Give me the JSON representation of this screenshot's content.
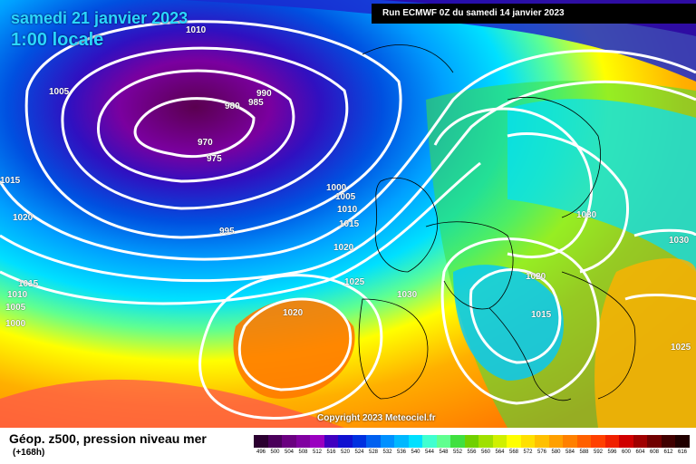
{
  "header": {
    "date": "samedi 21 janvier 2023",
    "time": "1:00 locale",
    "run": "Run ECMWF 0Z du samedi 14 janvier 2023"
  },
  "footer": {
    "title": "Géop. z500, pression niveau mer",
    "subtitle": "(+168h)",
    "copyright": "Copyright 2023 Meteociel.fr"
  },
  "scale": {
    "values": [
      "496",
      "500",
      "504",
      "508",
      "512",
      "516",
      "520",
      "524",
      "528",
      "532",
      "536",
      "540",
      "544",
      "548",
      "552",
      "556",
      "560",
      "564",
      "568",
      "572",
      "576",
      "580",
      "584",
      "588",
      "592",
      "596",
      "600",
      "604",
      "608",
      "612",
      "616"
    ],
    "colors": [
      "#2b0030",
      "#4a005a",
      "#6a0080",
      "#8000a0",
      "#9a00c0",
      "#4000c0",
      "#1010d0",
      "#0030e0",
      "#0060f0",
      "#0090ff",
      "#00b8ff",
      "#00e0ff",
      "#40ffd0",
      "#60ff90",
      "#40e040",
      "#70d000",
      "#a0e000",
      "#d0f000",
      "#ffff00",
      "#ffe000",
      "#ffc000",
      "#ffa000",
      "#ff8000",
      "#ff6000",
      "#ff4000",
      "#f02000",
      "#d00000",
      "#a00000",
      "#700000",
      "#400000",
      "#200000"
    ]
  },
  "isobars": [
    {
      "label": "1010",
      "color": "#fff"
    },
    {
      "label": "1005",
      "color": "#fff"
    },
    {
      "label": "990",
      "color": "#fff"
    },
    {
      "label": "985",
      "color": "#fff"
    },
    {
      "label": "980",
      "color": "#fff"
    },
    {
      "label": "970",
      "color": "#fff"
    },
    {
      "label": "975",
      "color": "#fff"
    },
    {
      "label": "1015",
      "color": "#fff"
    },
    {
      "label": "1020",
      "color": "#fff"
    },
    {
      "label": "995",
      "color": "#fff"
    },
    {
      "label": "1000",
      "color": "#fff"
    },
    {
      "label": "1005",
      "color": "#fff"
    },
    {
      "label": "1010",
      "color": "#fff"
    },
    {
      "label": "1015",
      "color": "#fff"
    },
    {
      "label": "1020",
      "color": "#fff"
    },
    {
      "label": "1025",
      "color": "#fff"
    },
    {
      "label": "1030",
      "color": "#fff"
    },
    {
      "label": "1020",
      "color": "#fff"
    },
    {
      "label": "1030",
      "color": "#fff"
    },
    {
      "label": "1020",
      "color": "#fff"
    },
    {
      "label": "1015",
      "color": "#fff"
    },
    {
      "label": "1030",
      "color": "#fff"
    },
    {
      "label": "1025",
      "color": "#fff"
    },
    {
      "label": "1015",
      "color": "#fff"
    },
    {
      "label": "1010",
      "color": "#fff"
    },
    {
      "label": "1005",
      "color": "#fff"
    },
    {
      "label": "1000",
      "color": "#fff"
    }
  ]
}
